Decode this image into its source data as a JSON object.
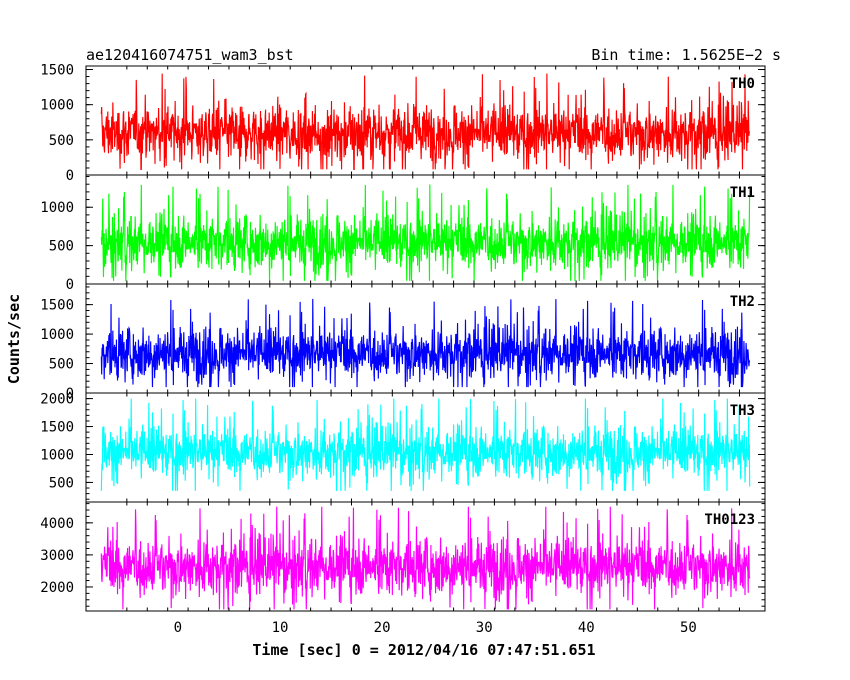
{
  "header": {
    "left_title": "ae120416074751_wam3_bst",
    "right_title": "Bin time: 1.5625E−2 s"
  },
  "xlabel": "Time [sec] 0 = 2012/04/16 07:47:51.651",
  "ylabel": "Counts/sec",
  "chart_data": {
    "type": "line",
    "title": "ae120416074751_wam3_bst",
    "subtitle": "Bin time: 1.5625E−2 s",
    "xlabel": "Time [sec] 0 = 2012/04/16 07:47:51.651",
    "ylabel": "Counts/sec",
    "xlim": [
      -9,
      57.5
    ],
    "x_ticks": [
      0,
      10,
      20,
      30,
      40,
      50
    ],
    "x_tick_labels": [
      "0",
      "10",
      "20",
      "30",
      "40",
      "50"
    ],
    "data_x_range": [
      -7.5,
      56
    ],
    "bin_time": 0.015625,
    "grid": false,
    "panels": [
      {
        "name": "TH0",
        "color": "#ff0000",
        "ylim": [
          0,
          1550
        ],
        "y_ticks": [
          0,
          500,
          1000,
          1500
        ],
        "y_tick_labels": [
          "0",
          "500",
          "1000",
          "1500"
        ],
        "series_range": [
          80,
          1500
        ],
        "mean": 600
      },
      {
        "name": "TH1",
        "color": "#00ff00",
        "ylim": [
          0,
          1420
        ],
        "y_ticks": [
          0,
          500,
          1000
        ],
        "y_tick_labels": [
          "0",
          "500",
          "1000"
        ],
        "series_range": [
          40,
          1300
        ],
        "mean": 550
      },
      {
        "name": "TH2",
        "color": "#0000ff",
        "ylim": [
          0,
          1850
        ],
        "y_ticks": [
          0,
          500,
          1000,
          1500
        ],
        "y_tick_labels": [
          "0",
          "500",
          "1000",
          "1500"
        ],
        "series_range": [
          100,
          1650
        ],
        "mean": 680
      },
      {
        "name": "TH3",
        "color": "#00ffff",
        "ylim": [
          150,
          2100
        ],
        "y_ticks": [
          500,
          1000,
          1500,
          2000
        ],
        "y_tick_labels": [
          "500",
          "1000",
          "1500",
          "2000"
        ],
        "series_range": [
          350,
          2000
        ],
        "mean": 1050
      },
      {
        "name": "TH0123",
        "color": "#ff00ff",
        "ylim": [
          1250,
          4650
        ],
        "y_ticks": [
          2000,
          3000,
          4000
        ],
        "y_tick_labels": [
          "2000",
          "3000",
          "4000"
        ],
        "series_range": [
          1300,
          4500
        ],
        "mean": 2650
      }
    ]
  }
}
